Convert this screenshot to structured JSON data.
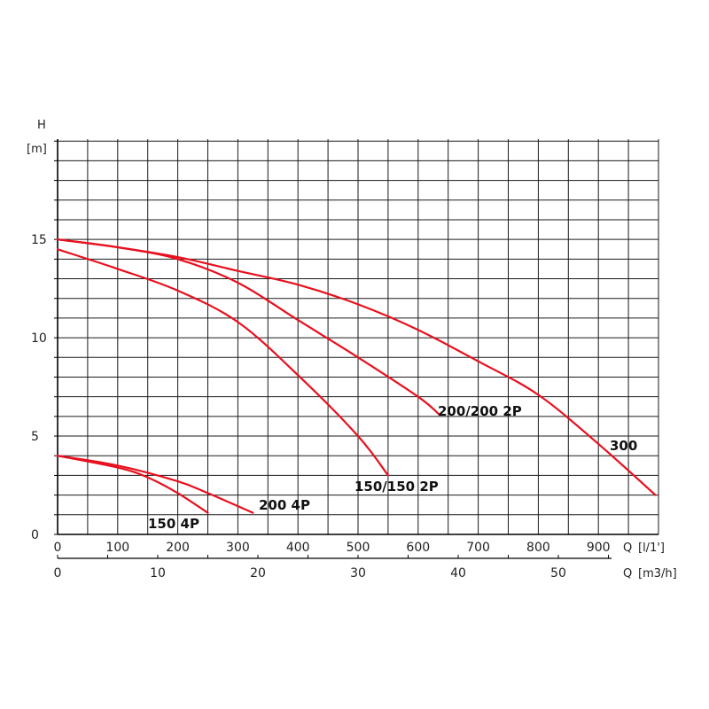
{
  "chart_data": {
    "type": "line",
    "y_label": "H",
    "y_unit": "[m]",
    "x_label": "Q",
    "x_unit": "[l/1']",
    "x2_label": "Q",
    "x2_unit": "[m3/h]",
    "xlim": [
      0,
      1000
    ],
    "ylim": [
      0,
      20
    ],
    "x_ticks": [
      0,
      100,
      200,
      300,
      400,
      500,
      600,
      700,
      800,
      900
    ],
    "x_tick_labels": [
      "0",
      "100",
      "200",
      "300",
      "400",
      "500",
      "600",
      "700",
      "800",
      "900"
    ],
    "x2_ticks_m3h": [
      0,
      10,
      20,
      30,
      40,
      50
    ],
    "x2_tick_labels": [
      "0",
      "10",
      "20",
      "30",
      "40",
      "50"
    ],
    "y_ticks": [
      0,
      5,
      10,
      15
    ],
    "y_tick_labels": [
      "0",
      "5",
      "10",
      "15"
    ],
    "grid": true,
    "line_color": "#e8101e",
    "series": [
      {
        "name": "150 4P",
        "points": [
          [
            0,
            4
          ],
          [
            100,
            3.4
          ],
          [
            150,
            2.9
          ],
          [
            200,
            2.1
          ],
          [
            250,
            1.1
          ]
        ]
      },
      {
        "name": "200 4P",
        "points": [
          [
            0,
            4
          ],
          [
            100,
            3.5
          ],
          [
            200,
            2.7
          ],
          [
            250,
            2.1
          ],
          [
            325,
            1.1
          ]
        ]
      },
      {
        "name": "150/150 2P",
        "points": [
          [
            0,
            14.5
          ],
          [
            100,
            13.5
          ],
          [
            200,
            12.4
          ],
          [
            300,
            10.8
          ],
          [
            400,
            8.1
          ],
          [
            500,
            5.0
          ],
          [
            550,
            3.0
          ]
        ]
      },
      {
        "name": "200/200 2P",
        "points": [
          [
            0,
            15
          ],
          [
            100,
            14.6
          ],
          [
            200,
            14.0
          ],
          [
            300,
            12.8
          ],
          [
            400,
            10.9
          ],
          [
            500,
            9.0
          ],
          [
            600,
            7.0
          ],
          [
            635,
            6.1
          ]
        ]
      },
      {
        "name": "300",
        "points": [
          [
            0,
            15
          ],
          [
            100,
            14.6
          ],
          [
            200,
            14.1
          ],
          [
            300,
            13.4
          ],
          [
            400,
            12.7
          ],
          [
            500,
            11.7
          ],
          [
            600,
            10.4
          ],
          [
            700,
            8.8
          ],
          [
            800,
            7.1
          ],
          [
            900,
            4.6
          ],
          [
            995,
            2.0
          ]
        ]
      }
    ],
    "series_label_positions": [
      "150 4P",
      "200 4P",
      "150/150 2P",
      "200/200 2P",
      "300"
    ]
  }
}
